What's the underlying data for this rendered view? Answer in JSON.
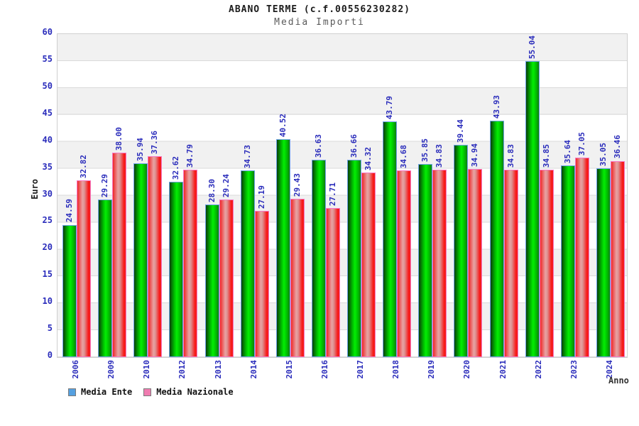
{
  "header": {
    "title": "ABANO TERME (c.f.00556230282)",
    "subtitle": "Media Importi"
  },
  "chart_data": {
    "type": "bar",
    "title": "ABANO TERME (c.f.00556230282)",
    "subtitle": "Media Importi",
    "xlabel": "Anno",
    "ylabel": "Euro",
    "ylim": [
      0,
      60
    ],
    "ytick_step": 5,
    "grid": "horizontal-bands-every-5",
    "legend_position": "bottom-left",
    "categories": [
      "2006",
      "2009",
      "2010",
      "2012",
      "2013",
      "2014",
      "2015",
      "2016",
      "2017",
      "2018",
      "2019",
      "2020",
      "2021",
      "2022",
      "2023",
      "2024"
    ],
    "series": [
      {
        "name": "Media Ente",
        "legend_color": "#55a0e0",
        "bar_color_dark": "#0a3e0a",
        "bar_color_bright": "#03ee03",
        "bar_border": "#6fa3e8",
        "values": [
          "24.59",
          "29.29",
          "35.94",
          "32.62",
          "28.30",
          "34.73",
          "40.52",
          "36.63",
          "36.66",
          "43.79",
          "35.85",
          "39.44",
          "43.93",
          "55.04",
          "35.64",
          "35.05"
        ]
      },
      {
        "name": "Media Nazionale",
        "legend_color": "#f07cb0",
        "bar_color_dark": "#ee2828",
        "bar_color_bright": "#dd9191",
        "bar_border": "#f678c4",
        "values": [
          "32.82",
          "38.00",
          "37.36",
          "34.79",
          "29.24",
          "27.19",
          "29.43",
          "27.71",
          "34.32",
          "34.68",
          "34.83",
          "34.94",
          "34.83",
          "34.85",
          "37.05",
          "36.46"
        ]
      }
    ],
    "colors": {
      "axis_text": "#2a2cbb",
      "band_gray": "#f1f1f1",
      "band_white": "#ffffff",
      "plot_border": "#cfcfcf",
      "title_text": "#1c1c1c",
      "subtitle_text": "#5a5a5a"
    }
  }
}
